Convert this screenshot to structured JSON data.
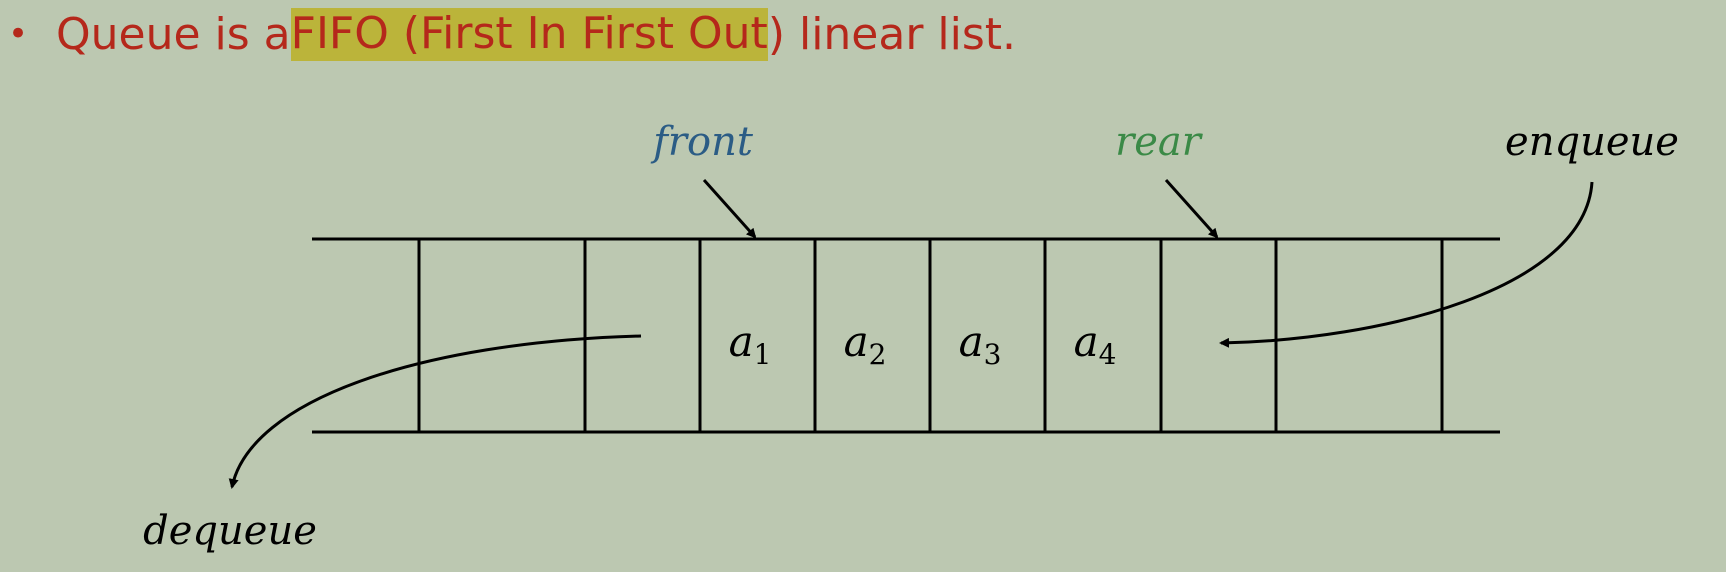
{
  "headline": {
    "before": "Queue is a ",
    "highlight": "FIFO (First In First Out",
    "after": ") linear list."
  },
  "labels": {
    "front": "front",
    "rear": "rear",
    "enqueue": "enqueue",
    "dequeue": "dequeue"
  },
  "cells": [
    {
      "base": "",
      "sub": ""
    },
    {
      "base": "",
      "sub": ""
    },
    {
      "base": "a",
      "sub": "1"
    },
    {
      "base": "a",
      "sub": "2"
    },
    {
      "base": "a",
      "sub": "3"
    },
    {
      "base": "a",
      "sub": "4"
    },
    {
      "base": "",
      "sub": ""
    },
    {
      "base": "",
      "sub": ""
    }
  ],
  "colors": {
    "background": "#bcc8b1",
    "headline": "#b5281b",
    "highlight": "#bbb43a",
    "front": "#2b5c85",
    "rear": "#3b8a47",
    "ink": "#000000"
  }
}
